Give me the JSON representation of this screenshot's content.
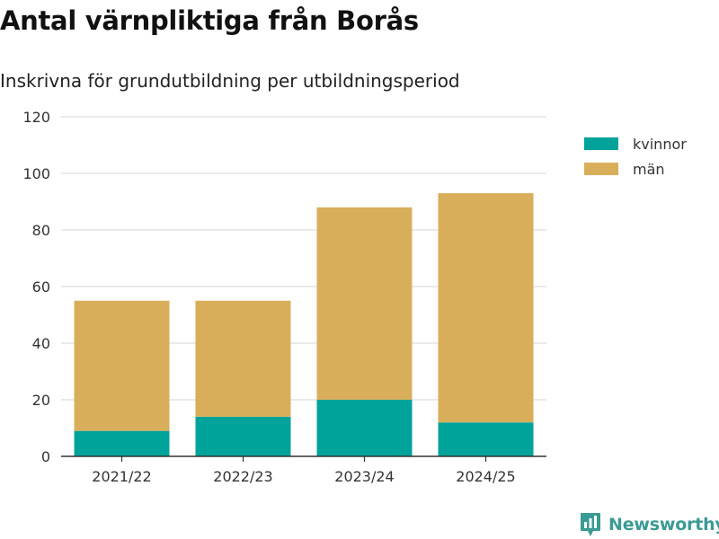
{
  "title": "Antal värnpliktiga från Borås",
  "subtitle": "Inskrivna för grundutbildning per utbildningsperiod",
  "brand": {
    "name": "Newsworthy",
    "icon": "newsworthy-logo-icon"
  },
  "colors": {
    "kvinnor": "#00a39a",
    "man": "#d9ae5b",
    "grid": "#dddddd",
    "axis": "#333333",
    "brand": "#3a9a94"
  },
  "chart_data": {
    "type": "bar",
    "stacked": true,
    "categories": [
      "2021/22",
      "2022/23",
      "2023/24",
      "2024/25"
    ],
    "series": [
      {
        "name": "kvinnor",
        "values": [
          9,
          14,
          20,
          12
        ]
      },
      {
        "name": "män",
        "values": [
          46,
          41,
          68,
          81
        ]
      }
    ],
    "ylim": [
      0,
      120
    ],
    "yticks": [
      0,
      20,
      40,
      60,
      80,
      100,
      120
    ],
    "grid": true,
    "legend": "right"
  }
}
